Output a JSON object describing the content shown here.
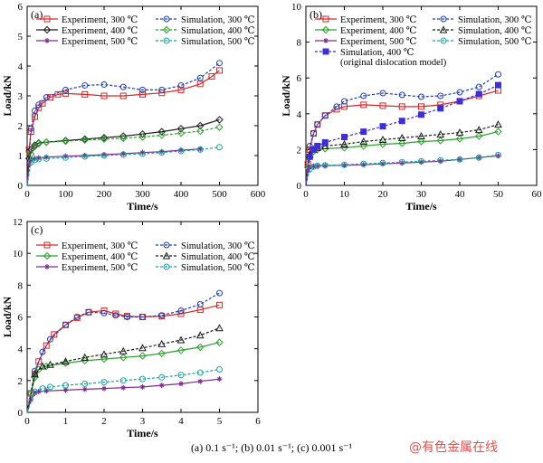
{
  "caption": "(a) 0.1 s⁻¹; (b) 0.01 s⁻¹; (c) 0.001 s⁻¹",
  "watermark": "@有色金属在线",
  "chart_data": [
    {
      "type": "line",
      "panel_label": "(a)",
      "xlabel": "Time/s",
      "ylabel": "Load/kN",
      "xlim": [
        0,
        600
      ],
      "ylim": [
        0,
        6
      ],
      "xticks": [
        0,
        100,
        200,
        300,
        400,
        500,
        600
      ],
      "yticks": [
        0,
        1,
        2,
        3,
        4,
        5,
        6
      ],
      "legend": "top-left",
      "series": [
        {
          "name": "Experiment, 300 ℃",
          "color": "#d62728",
          "dash": false,
          "marker": "square",
          "x": [
            0,
            5,
            10,
            20,
            30,
            40,
            60,
            80,
            100,
            150,
            200,
            250,
            300,
            350,
            400,
            450,
            480,
            500
          ],
          "y": [
            0,
            1.2,
            1.8,
            2.3,
            2.6,
            2.75,
            2.95,
            3.05,
            3.08,
            3.05,
            3.0,
            3.0,
            3.05,
            3.1,
            3.2,
            3.4,
            3.65,
            3.85
          ]
        },
        {
          "name": "Simulation, 300 ℃",
          "color": "#1f3fb4",
          "dash": true,
          "marker": "circle",
          "x": [
            0,
            10,
            20,
            30,
            50,
            100,
            150,
            200,
            250,
            300,
            350,
            400,
            450,
            500
          ],
          "y": [
            0,
            1.9,
            2.5,
            2.7,
            2.95,
            3.2,
            3.35,
            3.38,
            3.3,
            3.2,
            3.2,
            3.35,
            3.6,
            4.1
          ]
        },
        {
          "name": "Experiment, 400 ℃",
          "color": "#1a1a1a",
          "dash": false,
          "marker": "diamond",
          "x": [
            0,
            5,
            10,
            20,
            30,
            50,
            100,
            150,
            200,
            250,
            300,
            350,
            400,
            450,
            500
          ],
          "y": [
            0,
            0.9,
            1.2,
            1.35,
            1.42,
            1.45,
            1.5,
            1.55,
            1.6,
            1.65,
            1.72,
            1.8,
            1.9,
            2.0,
            2.2
          ]
        },
        {
          "name": "Simulation, 400 ℃",
          "color": "#2ca02c",
          "dash": true,
          "marker": "diamond",
          "x": [
            0,
            10,
            20,
            30,
            50,
            100,
            150,
            200,
            250,
            300,
            350,
            400,
            450,
            500
          ],
          "y": [
            0,
            1.05,
            1.3,
            1.4,
            1.45,
            1.48,
            1.52,
            1.55,
            1.58,
            1.62,
            1.68,
            1.75,
            1.82,
            1.95
          ]
        },
        {
          "name": "Experiment, 500 ℃",
          "color": "#7b2d8e",
          "dash": false,
          "marker": "star",
          "x": [
            0,
            5,
            10,
            20,
            30,
            50,
            100,
            150,
            200,
            250,
            300,
            350,
            400,
            450
          ],
          "y": [
            0,
            0.7,
            0.85,
            0.9,
            0.92,
            0.95,
            0.98,
            1.0,
            1.03,
            1.06,
            1.1,
            1.13,
            1.18,
            1.22
          ]
        },
        {
          "name": "Simulation, 500 ℃",
          "color": "#1aa39a",
          "dash": true,
          "marker": "circle",
          "x": [
            0,
            10,
            20,
            30,
            50,
            100,
            150,
            200,
            250,
            300,
            350,
            400,
            450,
            500
          ],
          "y": [
            0,
            0.78,
            0.85,
            0.88,
            0.9,
            0.93,
            0.97,
            1.0,
            1.03,
            1.06,
            1.1,
            1.15,
            1.2,
            1.28
          ]
        }
      ]
    },
    {
      "type": "line",
      "panel_label": "(b)",
      "xlabel": "Time/s",
      "ylabel": "Load/kN",
      "xlim": [
        0,
        60
      ],
      "ylim": [
        0,
        10
      ],
      "xticks": [
        0,
        10,
        20,
        30,
        40,
        50,
        60
      ],
      "yticks": [
        0,
        2,
        4,
        6,
        8,
        10
      ],
      "legend": "top",
      "series": [
        {
          "name": "Experiment, 300 ℃",
          "color": "#d62728",
          "dash": false,
          "marker": "square",
          "x": [
            0,
            0.5,
            1,
            2,
            3,
            5,
            8,
            10,
            15,
            20,
            25,
            30,
            35,
            40,
            45,
            50
          ],
          "y": [
            0,
            1.2,
            2.0,
            2.9,
            3.4,
            3.9,
            4.25,
            4.4,
            4.5,
            4.45,
            4.4,
            4.4,
            4.5,
            4.7,
            5.0,
            5.3
          ]
        },
        {
          "name": "Simulation, 300 ℃",
          "color": "#1f3fb4",
          "dash": true,
          "marker": "circle",
          "x": [
            0,
            1,
            2,
            3,
            5,
            8,
            10,
            15,
            20,
            25,
            30,
            35,
            40,
            45,
            50
          ],
          "y": [
            0,
            2.2,
            2.9,
            3.4,
            3.9,
            4.4,
            4.7,
            5.0,
            5.15,
            5.05,
            4.95,
            5.0,
            5.2,
            5.5,
            6.2
          ]
        },
        {
          "name": "Experiment, 400 ℃",
          "color": "#2ca02c",
          "dash": false,
          "marker": "diamond",
          "x": [
            0,
            0.5,
            1,
            2,
            3,
            5,
            10,
            15,
            20,
            25,
            30,
            35,
            40,
            45,
            50
          ],
          "y": [
            0,
            1.0,
            1.6,
            1.9,
            2.0,
            2.05,
            2.1,
            2.2,
            2.3,
            2.35,
            2.45,
            2.5,
            2.6,
            2.75,
            3.0
          ]
        },
        {
          "name": "Simulation, 400 ℃",
          "color": "#1a1a1a",
          "dash": true,
          "marker": "triangle",
          "x": [
            0,
            1,
            2,
            3,
            5,
            10,
            15,
            20,
            25,
            30,
            35,
            40,
            45,
            50
          ],
          "y": [
            0,
            1.7,
            2.0,
            2.1,
            2.2,
            2.3,
            2.45,
            2.55,
            2.65,
            2.75,
            2.85,
            2.95,
            3.1,
            3.4
          ]
        },
        {
          "name": "Experiment, 500 ℃",
          "color": "#7b2d8e",
          "dash": false,
          "marker": "star",
          "x": [
            0,
            0.5,
            1,
            2,
            3,
            5,
            10,
            15,
            20,
            25,
            30,
            35,
            40,
            45,
            50
          ],
          "y": [
            0,
            0.8,
            1.0,
            1.05,
            1.08,
            1.1,
            1.12,
            1.15,
            1.2,
            1.25,
            1.3,
            1.35,
            1.45,
            1.55,
            1.65
          ]
        },
        {
          "name": "Simulation, 500 ℃",
          "color": "#1aa39a",
          "dash": true,
          "marker": "circle",
          "x": [
            0,
            1,
            2,
            3,
            5,
            10,
            15,
            20,
            25,
            30,
            35,
            40,
            45,
            50
          ],
          "y": [
            0,
            0.9,
            1.05,
            1.1,
            1.12,
            1.15,
            1.2,
            1.25,
            1.3,
            1.35,
            1.4,
            1.45,
            1.55,
            1.7
          ]
        },
        {
          "name": "Simulation, 400 ℃",
          "note": "(original dislocation model)",
          "color": "#3f2fd0",
          "dash": true,
          "marker": "square-filled",
          "x": [
            0,
            1,
            2,
            3,
            5,
            10,
            15,
            20,
            25,
            30,
            35,
            40,
            45,
            50
          ],
          "y": [
            0,
            1.6,
            2.0,
            2.2,
            2.4,
            2.7,
            3.0,
            3.3,
            3.6,
            3.95,
            4.3,
            4.7,
            5.1,
            5.6
          ]
        }
      ]
    },
    {
      "type": "line",
      "panel_label": "(c)",
      "xlabel": "Time/s",
      "ylabel": "Load/kN",
      "xlim": [
        0,
        6
      ],
      "ylim": [
        0,
        12
      ],
      "xticks": [
        0,
        1,
        2,
        3,
        4,
        5,
        6
      ],
      "yticks": [
        0,
        2,
        4,
        6,
        8,
        10,
        12
      ],
      "legend": "top",
      "series": [
        {
          "name": "Experiment, 300 ℃",
          "color": "#d62728",
          "dash": false,
          "marker": "square",
          "x": [
            0,
            0.1,
            0.2,
            0.3,
            0.5,
            0.7,
            1.0,
            1.3,
            1.6,
            2.0,
            2.3,
            2.6,
            3.0,
            3.5,
            4.0,
            4.5,
            5.0
          ],
          "y": [
            0,
            1.2,
            2.4,
            3.2,
            4.2,
            4.9,
            5.5,
            5.95,
            6.3,
            6.4,
            6.2,
            6.05,
            6.0,
            6.05,
            6.2,
            6.45,
            6.75
          ]
        },
        {
          "name": "Simulation, 300 ℃",
          "color": "#1f3fb4",
          "dash": true,
          "marker": "circle",
          "x": [
            0,
            0.2,
            0.4,
            0.6,
            1.0,
            1.3,
            1.6,
            2.0,
            2.3,
            2.6,
            3.0,
            3.5,
            4.0,
            4.5,
            5.0
          ],
          "y": [
            0,
            2.6,
            3.8,
            4.6,
            5.5,
            6.0,
            6.3,
            6.25,
            6.1,
            6.0,
            6.0,
            6.1,
            6.4,
            6.8,
            7.5
          ]
        },
        {
          "name": "Experiment, 400 ℃",
          "color": "#2ca02c",
          "dash": false,
          "marker": "diamond",
          "x": [
            0,
            0.1,
            0.2,
            0.3,
            0.5,
            1.0,
            1.5,
            2.0,
            2.5,
            3.0,
            3.5,
            4.0,
            4.5,
            5.0
          ],
          "y": [
            0,
            1.2,
            2.2,
            2.7,
            2.9,
            3.1,
            3.25,
            3.35,
            3.45,
            3.55,
            3.7,
            3.9,
            4.1,
            4.4
          ]
        },
        {
          "name": "Simulation, 400 ℃",
          "color": "#1a1a1a",
          "dash": true,
          "marker": "triangle",
          "x": [
            0,
            0.2,
            0.4,
            0.6,
            1.0,
            1.5,
            2.0,
            2.5,
            3.0,
            3.5,
            4.0,
            4.5,
            5.0
          ],
          "y": [
            0,
            2.4,
            2.9,
            3.0,
            3.2,
            3.45,
            3.65,
            3.85,
            4.05,
            4.3,
            4.55,
            4.85,
            5.3
          ]
        },
        {
          "name": "Experiment, 500 ℃",
          "color": "#7b2d8e",
          "dash": false,
          "marker": "star",
          "x": [
            0,
            0.1,
            0.2,
            0.3,
            0.5,
            1.0,
            1.5,
            2.0,
            2.5,
            3.0,
            3.5,
            4.0,
            4.5,
            5.0
          ],
          "y": [
            0,
            0.8,
            1.2,
            1.3,
            1.35,
            1.4,
            1.45,
            1.5,
            1.55,
            1.6,
            1.7,
            1.8,
            1.95,
            2.1
          ]
        },
        {
          "name": "Simulation, 500 ℃",
          "color": "#1aa39a",
          "dash": true,
          "marker": "circle",
          "x": [
            0,
            0.2,
            0.4,
            0.6,
            1.0,
            1.5,
            2.0,
            2.5,
            3.0,
            3.5,
            4.0,
            4.5,
            5.0
          ],
          "y": [
            0,
            1.3,
            1.5,
            1.6,
            1.7,
            1.8,
            1.9,
            2.0,
            2.1,
            2.2,
            2.35,
            2.5,
            2.7
          ]
        }
      ]
    }
  ]
}
